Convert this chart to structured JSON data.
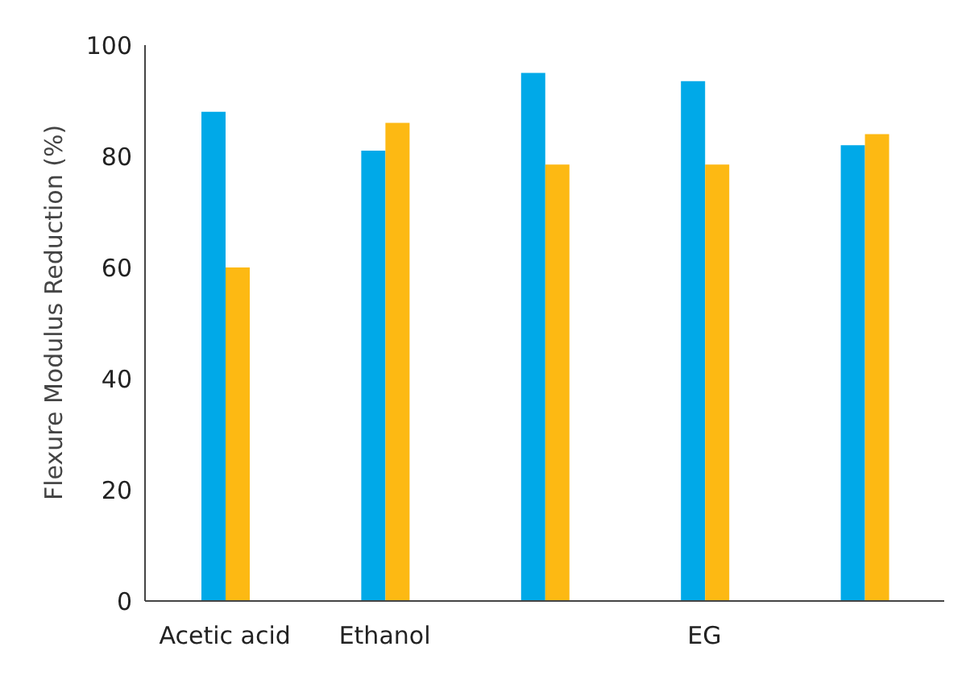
{
  "chart_data": {
    "type": "bar",
    "ylabel": "Flexure Modulus Reduction (%)",
    "categories": [
      "Acetic acid",
      "Ethanol",
      null,
      "EG",
      null
    ],
    "series": [
      {
        "color": "#00a9e8",
        "values": [
          88,
          81,
          95,
          93.5,
          82
        ]
      },
      {
        "color": "#fdb913",
        "values": [
          60,
          86,
          78.5,
          78.5,
          84
        ]
      }
    ],
    "ylim": [
      0,
      100
    ],
    "yticks": [
      0,
      20,
      40,
      60,
      80,
      100
    ],
    "grid": false,
    "legend": false
  }
}
